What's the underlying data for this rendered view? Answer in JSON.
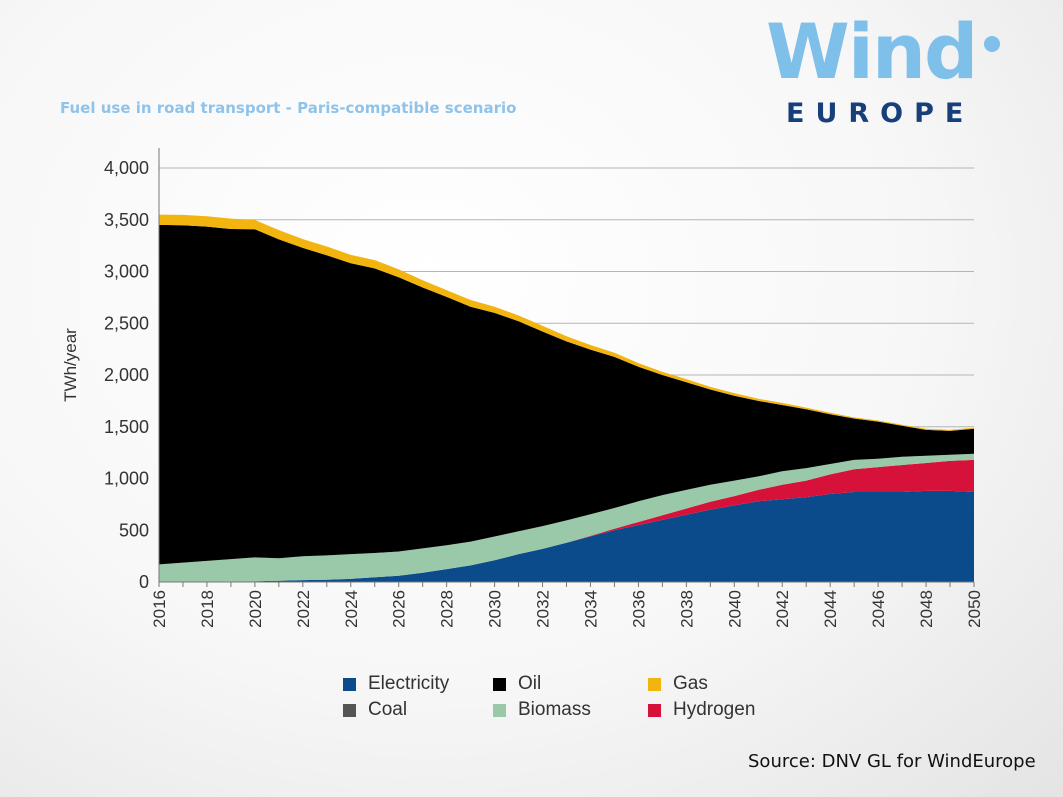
{
  "header": {
    "title": "Fuel use in road transport - Paris-compatible scenario",
    "logo_word": "Wind",
    "logo_subword": "EUROPE"
  },
  "source": "Source: DNV GL for WindEurope",
  "chart_data": {
    "type": "area",
    "stacked": true,
    "title": "Fuel use in road transport - Paris-compatible scenario",
    "xlabel": "",
    "ylabel": "TWh/year",
    "xlim": [
      2016,
      2050
    ],
    "ylim": [
      0,
      4000
    ],
    "y_ticks": [
      0,
      500,
      1000,
      1500,
      2000,
      2500,
      3000,
      3500,
      4000
    ],
    "y_tick_labels": [
      "0",
      "500",
      "1,000",
      "1,500",
      "2,000",
      "2,500",
      "3,000",
      "3,500",
      "4,000"
    ],
    "x_ticks": [
      2016,
      2018,
      2020,
      2022,
      2024,
      2026,
      2028,
      2030,
      2032,
      2034,
      2036,
      2038,
      2040,
      2042,
      2044,
      2046,
      2048,
      2050
    ],
    "x_tick_labels": [
      "2016",
      "2018",
      "2020",
      "2022",
      "2024",
      "2026",
      "2028",
      "2030",
      "2032",
      "2034",
      "2036",
      "2038",
      "2040",
      "2042",
      "2044",
      "2046",
      "2048",
      "2050"
    ],
    "grid": "horizontal",
    "legend_position": "bottom",
    "x": [
      2016,
      2017,
      2018,
      2019,
      2020,
      2021,
      2022,
      2023,
      2024,
      2025,
      2026,
      2027,
      2028,
      2029,
      2030,
      2031,
      2032,
      2033,
      2034,
      2035,
      2036,
      2037,
      2038,
      2039,
      2040,
      2041,
      2042,
      2043,
      2044,
      2045,
      2046,
      2047,
      2048,
      2049,
      2050
    ],
    "series": [
      {
        "name": "Electricity",
        "color": "#0b4a8b",
        "values": [
          0,
          2,
          4,
          6,
          8,
          12,
          18,
          22,
          30,
          45,
          60,
          90,
          125,
          160,
          210,
          270,
          320,
          380,
          440,
          500,
          550,
          600,
          650,
          700,
          740,
          780,
          800,
          820,
          850,
          870,
          870,
          870,
          880,
          880,
          870
        ]
      },
      {
        "name": "Coal",
        "color": "#555555",
        "values": [
          0,
          0,
          0,
          0,
          0,
          0,
          0,
          0,
          0,
          0,
          0,
          0,
          0,
          0,
          0,
          0,
          0,
          0,
          0,
          0,
          0,
          0,
          0,
          0,
          0,
          0,
          0,
          0,
          0,
          0,
          0,
          0,
          0,
          0,
          0
        ]
      },
      {
        "name": "Hydrogen",
        "color": "#d7123a",
        "values": [
          0,
          0,
          0,
          0,
          0,
          0,
          0,
          0,
          0,
          0,
          0,
          0,
          0,
          0,
          0,
          0,
          0,
          0,
          5,
          15,
          30,
          45,
          60,
          75,
          90,
          110,
          140,
          160,
          190,
          220,
          240,
          260,
          270,
          290,
          310
        ]
      },
      {
        "name": "Biomass",
        "color": "#99c9a8",
        "values": [
          170,
          185,
          200,
          215,
          230,
          218,
          230,
          235,
          240,
          235,
          235,
          235,
          230,
          230,
          230,
          220,
          220,
          215,
          210,
          200,
          200,
          195,
          180,
          165,
          150,
          130,
          130,
          120,
          100,
          90,
          80,
          80,
          70,
          60,
          60
        ]
      },
      {
        "name": "Oil",
        "color": "#000000",
        "values": [
          3280,
          3260,
          3230,
          3190,
          3170,
          3080,
          2980,
          2900,
          2810,
          2750,
          2650,
          2520,
          2400,
          2270,
          2160,
          2030,
          1880,
          1730,
          1590,
          1460,
          1300,
          1160,
          1040,
          920,
          820,
          730,
          640,
          570,
          480,
          400,
          360,
          300,
          250,
          230,
          240
        ]
      },
      {
        "name": "Gas",
        "color": "#f2b40f",
        "values": [
          100,
          100,
          100,
          100,
          90,
          90,
          85,
          85,
          80,
          80,
          75,
          70,
          65,
          65,
          60,
          55,
          55,
          50,
          45,
          40,
          35,
          30,
          30,
          25,
          25,
          20,
          20,
          15,
          15,
          10,
          10,
          10,
          10,
          10,
          10
        ]
      }
    ]
  },
  "legend": {
    "items": [
      {
        "label": "Electricity",
        "color": "#0b4a8b"
      },
      {
        "label": "Oil",
        "color": "#000000"
      },
      {
        "label": "Gas",
        "color": "#f2b40f"
      },
      {
        "label": "Coal",
        "color": "#555555"
      },
      {
        "label": "Biomass",
        "color": "#99c9a8"
      },
      {
        "label": "Hydrogen",
        "color": "#d7123a"
      }
    ]
  }
}
